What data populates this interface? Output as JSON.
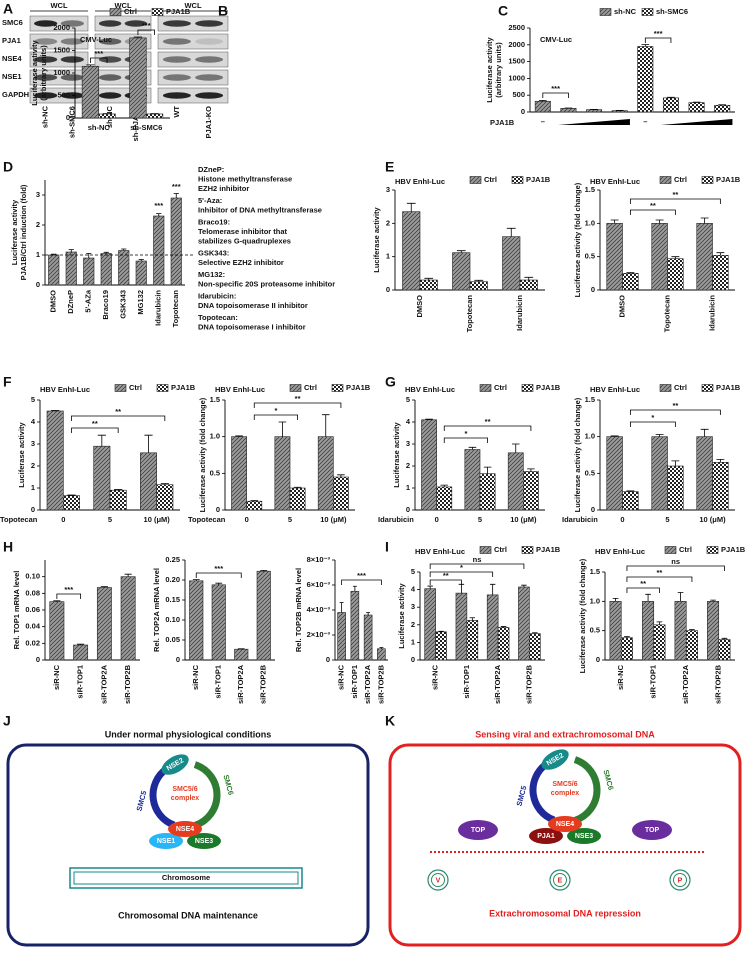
{
  "panel_labels": [
    "A",
    "B",
    "C",
    "D",
    "E",
    "F",
    "G",
    "H",
    "I",
    "J",
    "K"
  ],
  "blot": {
    "headers": [
      "WCL",
      "WCL",
      "WCL"
    ],
    "rows": [
      "SMC6",
      "PJA1",
      "NSE4",
      "NSE1",
      "GAPDH"
    ],
    "lanes": [
      "sh-NC",
      "sh-SMC6",
      "sh-NC",
      "sh-PJA1B",
      "WT",
      "PJA1-KO"
    ]
  },
  "chart_data": [
    {
      "type": "bar",
      "title": "CMV-Luc",
      "ylabel": [
        "Luciferase activity",
        "(arbitrary units)"
      ],
      "categories": [
        "sh-NC",
        "sh-SMC6"
      ],
      "series": [
        {
          "name": "Ctrl",
          "color": "#9a9a9a",
          "values": [
            1150,
            1780
          ],
          "errors": [
            30,
            20
          ]
        },
        {
          "name": "PJA1B",
          "color": "#ffffff",
          "values": [
            90,
            90
          ],
          "errors": [
            8,
            6
          ]
        }
      ],
      "ylim": [
        0,
        2000
      ],
      "yticks": [
        0,
        500,
        1000,
        1500,
        2000
      ],
      "annotations": [
        "***",
        "***"
      ]
    },
    {
      "type": "bar",
      "title": "CMV-Luc",
      "ylabel": [
        "Luciferase activity",
        "(arbitrary units)"
      ],
      "xlabel": "PJA1B",
      "categories": [
        "–",
        null,
        null,
        null,
        "–",
        null,
        null,
        null
      ],
      "series": [
        {
          "name": "sh-NC",
          "color": "#9a9a9a",
          "values": [
            320,
            110,
            70,
            40,
            null,
            null,
            null,
            null
          ],
          "errors": [
            25,
            10,
            8,
            6,
            null,
            null,
            null,
            null
          ]
        },
        {
          "name": "sh-SMC6",
          "color": "#ffffff",
          "values": [
            null,
            null,
            null,
            null,
            1950,
            420,
            280,
            200
          ],
          "errors": [
            null,
            null,
            null,
            null,
            60,
            20,
            15,
            15
          ]
        }
      ],
      "ylim": [
        0,
        2500
      ],
      "yticks": [
        0,
        500,
        1000,
        1500,
        2000,
        2500
      ],
      "annotations": [
        "***",
        "***"
      ]
    },
    {
      "type": "bar",
      "ylabel": [
        "Luciferase activity",
        "PJA1B/Ctrl induction (fold)"
      ],
      "categories": [
        "DMSO",
        "DZneP",
        "5'-AZa",
        "Braco19",
        "GSK343",
        "MG132",
        "Idarubicin",
        "Topotecan"
      ],
      "values": [
        1,
        1.1,
        0.9,
        1.05,
        1.15,
        0.8,
        2.3,
        2.9
      ],
      "errors": [
        0.03,
        0.08,
        0.15,
        0.04,
        0.05,
        0.05,
        0.08,
        0.15
      ],
      "color": "#9a9a9a",
      "ylim": [
        0,
        3.5
      ],
      "yticks": [
        0,
        1,
        2,
        3
      ],
      "reference_line": 1,
      "annotations": [
        "***",
        "***"
      ],
      "notes": [
        {
          "name": "DZneP:",
          "text": [
            "Histone methyltransferase",
            "EZH2 inhibitor"
          ]
        },
        {
          "name": "5'-Aza:",
          "text": [
            "Inhibitor of DNA methyltransferase"
          ]
        },
        {
          "name": "Braco19:",
          "text": [
            "Telomerase inhibitor that",
            "stabilizes G-quadruplexes"
          ]
        },
        {
          "name": "GSK343:",
          "text": [
            "Selective EZH2 inhibitor"
          ]
        },
        {
          "name": "MG132:",
          "text": [
            "Non-specific 20S proteasome inhibitor"
          ]
        },
        {
          "name": "Idarubicin:",
          "text": [
            "DNA topoisomerase II inhibitor"
          ]
        },
        {
          "name": "Topotecan:",
          "text": [
            "DNA topoisomerase I inhibitor"
          ]
        }
      ]
    },
    {
      "type": "bar",
      "title": "HBV EnhI-Luc",
      "ylabel": [
        "Luciferase activity"
      ],
      "categories": [
        "DMSO",
        "Topotecan",
        "Idarubicin"
      ],
      "series": [
        {
          "name": "Ctrl",
          "color": "#9a9a9a",
          "values": [
            2.35,
            1.12,
            1.6
          ],
          "errors": [
            0.25,
            0.06,
            0.25
          ]
        },
        {
          "name": "PJA1B",
          "color": "#ffffff",
          "values": [
            0.3,
            0.25,
            0.3
          ],
          "errors": [
            0.05,
            0.04,
            0.08
          ]
        }
      ],
      "ylim": [
        0,
        3
      ],
      "yticks": [
        0,
        1,
        2,
        3
      ]
    },
    {
      "type": "bar",
      "title": "HBV EnhI-Luc",
      "ylabel": [
        "Luciferase activity (fold change)"
      ],
      "categories": [
        "DMSO",
        "Topotecan",
        "Idarubicin"
      ],
      "series": [
        {
          "name": "Ctrl",
          "color": "#9a9a9a",
          "values": [
            1,
            1,
            1
          ],
          "errors": [
            0.05,
            0.05,
            0.08
          ]
        },
        {
          "name": "PJA1B",
          "color": "#ffffff",
          "values": [
            0.25,
            0.47,
            0.52
          ],
          "errors": [
            0.01,
            0.03,
            0.04
          ]
        }
      ],
      "ylim": [
        0,
        1.5
      ],
      "yticks": [
        0,
        0.5,
        {
          "value": 1,
          "label": "1.0"
        },
        1.5
      ],
      "annotations": [
        "**",
        "**"
      ]
    },
    {
      "type": "bar",
      "title": "HBV EnhI-Luc",
      "ylabel": [
        "Luciferase activity"
      ],
      "xlabel": "Topotecan",
      "categories": [
        "0",
        "5",
        "10 (μM)"
      ],
      "series": [
        {
          "name": "Ctrl",
          "color": "#9a9a9a",
          "values": [
            4.5,
            2.9,
            2.6
          ],
          "errors": [
            0.03,
            0.5,
            0.8
          ]
        },
        {
          "name": "PJA1B",
          "color": "#ffffff",
          "values": [
            0.65,
            0.9,
            1.15
          ],
          "errors": [
            0.03,
            0.03,
            0.05
          ]
        }
      ],
      "ylim": [
        0,
        5
      ],
      "yticks": [
        0,
        1,
        2,
        3,
        4,
        5
      ],
      "annotations": [
        "**",
        "**"
      ]
    },
    {
      "type": "bar",
      "title": "HBV EnhI-Luc",
      "ylabel": [
        "Luciferase activity (fold change)"
      ],
      "xlabel": "Topotecan",
      "categories": [
        "0",
        "5",
        "10 (μM)"
      ],
      "series": [
        {
          "name": "Ctrl",
          "color": "#9a9a9a",
          "values": [
            1,
            1,
            1
          ],
          "errors": [
            0.01,
            0.2,
            0.3
          ]
        },
        {
          "name": "PJA1B",
          "color": "#ffffff",
          "values": [
            0.12,
            0.3,
            0.45
          ],
          "errors": [
            0.01,
            0.01,
            0.03
          ]
        }
      ],
      "ylim": [
        0,
        1.5
      ],
      "yticks": [
        0,
        0.5,
        {
          "value": 1,
          "label": "1.0"
        },
        1.5
      ],
      "annotations": [
        "*",
        "**"
      ]
    },
    {
      "type": "bar",
      "title": "HBV EnhI-Luc",
      "ylabel": [
        "Luciferase activity"
      ],
      "xlabel": "Idarubicin",
      "categories": [
        "0",
        "5",
        "10 (μM)"
      ],
      "series": [
        {
          "name": "Ctrl",
          "color": "#9a9a9a",
          "values": [
            4.1,
            2.75,
            2.6
          ],
          "errors": [
            0.03,
            0.1,
            0.4
          ]
        },
        {
          "name": "PJA1B",
          "color": "#ffffff",
          "values": [
            1.05,
            1.65,
            1.75
          ],
          "errors": [
            0.08,
            0.3,
            0.12
          ]
        }
      ],
      "ylim": [
        0,
        5
      ],
      "yticks": [
        0,
        1,
        2,
        3,
        4,
        5
      ],
      "annotations": [
        "*",
        "**"
      ]
    },
    {
      "type": "bar",
      "title": "HBV EnhI-Luc",
      "ylabel": [
        "Luciferase activity (fold change)"
      ],
      "xlabel": "Idarubicin",
      "categories": [
        "0",
        "5",
        "10 (μM)"
      ],
      "series": [
        {
          "name": "Ctrl",
          "color": "#9a9a9a",
          "values": [
            1,
            1,
            1
          ],
          "errors": [
            0.01,
            0.03,
            0.1
          ]
        },
        {
          "name": "PJA1B",
          "color": "#ffffff",
          "values": [
            0.25,
            0.6,
            0.65
          ],
          "errors": [
            0.01,
            0.07,
            0.04
          ]
        }
      ],
      "ylim": [
        0,
        1.5
      ],
      "yticks": [
        0,
        0.5,
        {
          "value": 1,
          "label": "1.0"
        },
        1.5
      ],
      "annotations": [
        "*",
        "**"
      ]
    },
    {
      "type": "bar",
      "ylabel": [
        "Rel. TOP1 mRNA level"
      ],
      "categories": [
        "siR-NC",
        "siR-TOP1",
        "siR-TOP2A",
        "siR-TOP2B"
      ],
      "values": [
        0.07,
        0.018,
        0.087,
        0.1
      ],
      "errors": [
        0.001,
        0.001,
        0.001,
        0.003
      ],
      "color": "#9a9a9a",
      "ylim": [
        0,
        0.12
      ],
      "yticks": [
        0,
        0.02,
        0.04,
        0.06,
        0.08,
        {
          "value": 0.1,
          "label": "0.10"
        }
      ],
      "annotations": [
        "***"
      ]
    },
    {
      "type": "bar",
      "ylabel": [
        "Rel. TOP2A mRNA level"
      ],
      "categories": [
        "siR-NC",
        "siR-TOP1",
        "siR-TOP2A",
        "siR-TOP2B"
      ],
      "values": [
        0.198,
        0.188,
        0.027,
        0.222
      ],
      "errors": [
        0.003,
        0.004,
        0.001,
        0.002
      ],
      "color": "#9a9a9a",
      "ylim": [
        0,
        0.25
      ],
      "yticks": [
        0,
        0.05,
        {
          "value": 0.1,
          "label": "0.10"
        },
        0.15,
        {
          "value": 0.2,
          "label": "0.20"
        },
        0.25
      ],
      "annotations": [
        "***"
      ]
    },
    {
      "type": "bar",
      "ylabel": [
        "Rel. TOP2B mRNA level"
      ],
      "categories": [
        "siR-NC",
        "siR-TOP1",
        "siR-TOP2A",
        "siR-TOP2B"
      ],
      "values": [
        0.0038,
        0.0055,
        0.0036,
        0.0009
      ],
      "errors": [
        0.0008,
        0.0004,
        0.0002,
        0.0001
      ],
      "color": "#9a9a9a",
      "ylim": [
        0,
        0.008
      ],
      "yticks": [
        0,
        {
          "value": 0.002,
          "label": "2×10⁻³"
        },
        {
          "value": 0.004,
          "label": "4×10⁻³"
        },
        {
          "value": 0.006,
          "label": "6×10⁻³"
        },
        {
          "value": 0.008,
          "label": "8×10⁻³"
        }
      ],
      "annotations": [
        "***"
      ]
    },
    {
      "type": "bar",
      "title": "HBV EnhI-Luc",
      "ylabel": [
        "Luciferase activity"
      ],
      "categories": [
        "siR-NC",
        "siR-TOP1",
        "siR-TOP2A",
        "siR-TOP2B"
      ],
      "series": [
        {
          "name": "Ctrl",
          "color": "#9a9a9a",
          "values": [
            4.05,
            3.8,
            3.7,
            4.15
          ],
          "errors": [
            0.15,
            0.5,
            0.6,
            0.1
          ]
        },
        {
          "name": "PJA1B",
          "color": "#ffffff",
          "values": [
            1.6,
            2.25,
            1.85,
            1.5
          ],
          "errors": [
            0.03,
            0.15,
            0.05,
            0.05
          ]
        }
      ],
      "ylim": [
        0,
        5
      ],
      "yticks": [
        0,
        1,
        2,
        3,
        4,
        5
      ],
      "annotations": [
        "ns",
        "*",
        "**"
      ]
    },
    {
      "type": "bar",
      "title": "HBV EnhI-Luc",
      "ylabel": [
        "Luciferase activity (fold change)"
      ],
      "categories": [
        "siR-NC",
        "siR-TOP1",
        "siR-TOP2A",
        "siR-TOP2B"
      ],
      "series": [
        {
          "name": "Ctrl",
          "color": "#9a9a9a",
          "values": [
            1,
            1,
            1,
            1
          ],
          "errors": [
            0.05,
            0.12,
            0.15,
            0.02
          ]
        },
        {
          "name": "PJA1B",
          "color": "#ffffff",
          "values": [
            0.38,
            0.6,
            0.5,
            0.35
          ],
          "errors": [
            0.02,
            0.05,
            0.02,
            0.02
          ]
        }
      ],
      "ylim": [
        0,
        1.5
      ],
      "yticks": [
        0,
        0.5,
        {
          "value": 1,
          "label": "1.0"
        },
        1.5
      ],
      "annotations": [
        "ns",
        "**",
        "**"
      ]
    }
  ],
  "diagrams": {
    "J": {
      "title": "Under normal physiological conditions",
      "nse2": "NSE2",
      "smc5": "SMC5",
      "smc6": "SMC6",
      "complex": [
        "SMC5/6",
        "complex"
      ],
      "nse4": "NSE4",
      "subunits": [
        "NSE1",
        "NSE3"
      ],
      "chromosome": "Chromosome",
      "caption": "Chromosomal DNA maintenance"
    },
    "K": {
      "title": "Sensing viral and extrachromosomal DNA",
      "nse2": "NSE2",
      "smc5": "SMC5",
      "smc6": "SMC6",
      "complex": [
        "SMC5/6",
        "complex"
      ],
      "nse4": "NSE4",
      "subunits": [
        "PJA1",
        "NSE3"
      ],
      "top": [
        "TOP",
        "TOP"
      ],
      "dna": [
        "V",
        "E",
        "P"
      ],
      "caption": "Extrachromosomal DNA repression"
    }
  }
}
